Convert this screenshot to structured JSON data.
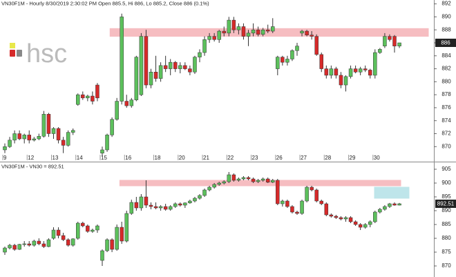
{
  "chart_data": [
    {
      "type": "candlestick",
      "title": "VN30F1M - Hourly 8/30/2019 2:30:02 PM Open 885.5, Hi 886, Lo 885.2, Close 886 (0.1%)",
      "watermark": "hsc",
      "ylim": [
        867.9,
        892.6
      ],
      "yticks": [
        870,
        872,
        874,
        876,
        878,
        880,
        882,
        884,
        886,
        888,
        890,
        892
      ],
      "last": 886,
      "up_color": "#5cc05c",
      "down_color": "#d62a2a",
      "zones": [
        {
          "from": 887,
          "to": 888.2,
          "color": "#f4a7ad"
        }
      ],
      "days": [
        {
          "label": "9",
          "candles": [
            [
              869.5,
              870.5,
              869,
              870
            ],
            [
              870,
              871.5,
              869.8,
              871
            ],
            [
              871,
              872.5,
              870.5,
              872
            ],
            [
              872,
              872.5,
              871,
              871.2
            ],
            [
              871.2,
              872,
              870.5,
              871.8
            ]
          ]
        },
        {
          "label": "12",
          "candles": [
            [
              871.8,
              872.5,
              870.5,
              871
            ],
            [
              871,
              871.5,
              870.8,
              871.2
            ],
            [
              871.2,
              872,
              871,
              871.6
            ],
            [
              871.6,
              875.5,
              871.4,
              875
            ],
            [
              875,
              875.2,
              871.5,
              872
            ]
          ]
        },
        {
          "label": "13",
          "candles": [
            [
              872,
              873,
              871.2,
              872.8
            ],
            [
              872.8,
              873,
              870.5,
              871
            ],
            [
              871,
              871.5,
              869,
              870.2
            ],
            [
              870.2,
              872.5,
              870,
              872.2
            ],
            [
              872.2,
              872.8,
              871.8,
              872.5
            ]
          ]
        },
        {
          "label": "14",
          "candles": [
            [
              876.5,
              878.2,
              876.3,
              878
            ],
            [
              878,
              878.5,
              877.2,
              877.5
            ],
            [
              877.5,
              878,
              877,
              877.8
            ],
            [
              877.8,
              878.5,
              876.5,
              877
            ],
            [
              879.5,
              879.8,
              877,
              877.5
            ]
          ]
        },
        {
          "label": "15",
          "candles": [
            [
              869,
              870,
              868.5,
              869.5
            ],
            [
              869.5,
              872,
              869.2,
              871.8
            ],
            [
              871.8,
              874.5,
              871.5,
              874.2
            ],
            [
              874.2,
              877.5,
              874,
              877
            ],
            [
              877,
              890.5,
              876.5,
              890
            ]
          ]
        },
        {
          "label": "16",
          "candles": [
            [
              877,
              878,
              876,
              876.3
            ],
            [
              876.3,
              877.5,
              876,
              877.2
            ],
            [
              877.2,
              884,
              877,
              883.8
            ],
            [
              878,
              887.5,
              877.8,
              887
            ],
            [
              887,
              888,
              879,
              879.5
            ],
            [
              879.5,
              882,
              879,
              881.5
            ]
          ]
        },
        {
          "label": "18",
          "candles": [
            [
              881.5,
              884,
              880,
              880.5
            ],
            [
              880.5,
              883,
              880,
              882.5
            ],
            [
              882.5,
              884,
              881.5,
              882
            ],
            [
              882,
              883.5,
              881,
              883
            ],
            [
              883,
              883.2,
              881.5,
              882
            ]
          ]
        },
        {
          "label": "20",
          "candles": [
            [
              882,
              883,
              881.3,
              882.5
            ],
            [
              882.5,
              883,
              881.8,
              882
            ],
            [
              882,
              882.5,
              881,
              881.5
            ],
            [
              881.5,
              884,
              881.2,
              883.8
            ],
            [
              883.8,
              885,
              883,
              884.5
            ]
          ]
        },
        {
          "label": "21",
          "candles": [
            [
              884.5,
              887,
              884,
              886.5
            ],
            [
              886.5,
              887.5,
              886,
              887
            ],
            [
              887,
              887.5,
              886.2,
              886.5
            ],
            [
              886.5,
              888,
              886,
              887.8
            ],
            [
              887.8,
              888.5,
              887,
              887.5
            ]
          ]
        },
        {
          "label": "22",
          "candles": [
            [
              887.5,
              890,
              887,
              889.5
            ],
            [
              889.5,
              890,
              887.5,
              888
            ],
            [
              888,
              889,
              887.3,
              888.5
            ],
            [
              888.5,
              889,
              886.5,
              887
            ],
            [
              887,
              888,
              885.5,
              887.5
            ]
          ]
        },
        {
          "label": "23",
          "candles": [
            [
              887.5,
              889,
              887,
              888
            ],
            [
              888,
              888.5,
              887,
              887.3
            ],
            [
              887.3,
              888.3,
              887,
              888
            ],
            [
              888,
              888.8,
              887.5,
              887.8
            ],
            [
              887.8,
              889.8,
              887.5,
              888.5
            ]
          ]
        },
        {
          "label": "26",
          "candles": [
            [
              882,
              884,
              881,
              883.8
            ],
            [
              883.8,
              884,
              882.5,
              883
            ],
            [
              883,
              884,
              882.5,
              883.5
            ],
            [
              883.5,
              885,
              883.2,
              884.8
            ],
            [
              884.8,
              886,
              884,
              885.5
            ]
          ]
        },
        {
          "label": "27",
          "candles": [
            [
              887.5,
              888,
              887,
              887.8
            ],
            [
              887.8,
              888,
              887,
              887.2
            ],
            [
              887.2,
              887.8,
              886.5,
              887
            ],
            [
              887,
              887.3,
              884,
              884.2
            ],
            [
              884.2,
              884.5,
              881.5,
              882
            ]
          ]
        },
        {
          "label": "28",
          "candles": [
            [
              882,
              882.5,
              880.5,
              881
            ],
            [
              881,
              882.5,
              880.5,
              882
            ],
            [
              882,
              882.3,
              880.5,
              881
            ],
            [
              881,
              881.5,
              879,
              879.5
            ],
            [
              879.5,
              881,
              878.5,
              880.8
            ]
          ]
        },
        {
          "label": "29",
          "candles": [
            [
              880.8,
              882.5,
              880.5,
              882
            ],
            [
              882,
              882.5,
              881.3,
              881.5
            ],
            [
              881.5,
              882.3,
              881,
              882
            ],
            [
              882,
              882.5,
              881.5,
              881.8
            ],
            [
              881.8,
              882,
              880.5,
              881
            ]
          ]
        },
        {
          "label": "30",
          "candles": [
            [
              881,
              885,
              880.5,
              884.5
            ],
            [
              884.5,
              885.2,
              884.3,
              885
            ],
            [
              885.5,
              887.5,
              885.2,
              887
            ],
            [
              887,
              887.3,
              886.2,
              886.5
            ],
            [
              887,
              887.2,
              884.5,
              885.5
            ],
            [
              885.5,
              886,
              885.2,
              886
            ]
          ]
        }
      ]
    },
    {
      "type": "candlestick",
      "title": "VN30F1M - VN30 = 892.51",
      "ylim": [
        866,
        907
      ],
      "yticks": [
        870,
        875,
        880,
        885,
        890,
        895,
        900,
        905
      ],
      "last": 892.51,
      "up_color": "#5cc05c",
      "down_color": "#d62a2a",
      "zones": [
        {
          "from": 899,
          "to": 901,
          "color": "#f4a7ad"
        },
        {
          "from": 894.5,
          "to": 898.5,
          "color": "#a9dde3"
        }
      ],
      "candles": [
        [
          875,
          877,
          874,
          876.5
        ],
        [
          876.5,
          878,
          876,
          877.5
        ],
        [
          877.5,
          878,
          875.5,
          876
        ],
        [
          876,
          878,
          875.8,
          877.8
        ],
        [
          877.8,
          879,
          877,
          878
        ],
        [
          878,
          879,
          877,
          877.5
        ],
        [
          877.5,
          879.5,
          877,
          879
        ],
        [
          879,
          880,
          877.5,
          878
        ],
        [
          878,
          879,
          876.5,
          877
        ],
        [
          877,
          880,
          876.8,
          879.5
        ],
        [
          880,
          884,
          879.5,
          883
        ],
        [
          883,
          884,
          880,
          881
        ],
        [
          881,
          882,
          879,
          879.5
        ],
        [
          879.5,
          880,
          877,
          877.5
        ],
        [
          877.5,
          880,
          877,
          879.8
        ],
        [
          880,
          886,
          879.5,
          885.5
        ],
        [
          885.5,
          886,
          884,
          884.5
        ],
        [
          884.5,
          885,
          882,
          882.5
        ],
        [
          882.5,
          883.5,
          882,
          883
        ],
        [
          883,
          885,
          882,
          884.5
        ],
        [
          872,
          876,
          870,
          875.5
        ],
        [
          875.5,
          880,
          875,
          879.5
        ],
        [
          879.5,
          880,
          875,
          876
        ],
        [
          876,
          885,
          875.5,
          884
        ],
        [
          884,
          886,
          878,
          879
        ],
        [
          879,
          890,
          878.5,
          889
        ],
        [
          889,
          894,
          888.5,
          893
        ],
        [
          893,
          895,
          890,
          891
        ],
        [
          891,
          896,
          890,
          895
        ],
        [
          895,
          901,
          891,
          892
        ],
        [
          892,
          893,
          890.5,
          891.5
        ],
        [
          891.5,
          893,
          890.5,
          891
        ],
        [
          891,
          892,
          890,
          891.5
        ],
        [
          891.5,
          892.5,
          890,
          890.5
        ],
        [
          890.5,
          892,
          890,
          891.5
        ],
        [
          891.5,
          893,
          891,
          892.5
        ],
        [
          892.5,
          893,
          891.5,
          892
        ],
        [
          892,
          893,
          891,
          892.8
        ],
        [
          892.8,
          894,
          892.5,
          893.5
        ],
        [
          893.5,
          895,
          893,
          894.5
        ],
        [
          894.5,
          896,
          894,
          895.5
        ],
        [
          895.5,
          898,
          895,
          897.5
        ],
        [
          897.5,
          899,
          897,
          898.5
        ],
        [
          898.5,
          900,
          898,
          899.5
        ],
        [
          899.5,
          900.5,
          899,
          900
        ],
        [
          900,
          901,
          899.5,
          900.5
        ],
        [
          900.5,
          904,
          900,
          903
        ],
        [
          903,
          903.5,
          900.5,
          901
        ],
        [
          901,
          902,
          900.5,
          901.5
        ],
        [
          901.5,
          902.5,
          901,
          902
        ],
        [
          902,
          902.5,
          901,
          901.5
        ],
        [
          901.5,
          902,
          900,
          900.5
        ],
        [
          900.5,
          901.5,
          900,
          901
        ],
        [
          901,
          902,
          900.5,
          901.5
        ],
        [
          901.5,
          902,
          900,
          900.3
        ],
        [
          900.3,
          901.5,
          900,
          901
        ],
        [
          901,
          901.5,
          892,
          892.5
        ],
        [
          892.5,
          894,
          891.5,
          893.5
        ],
        [
          893.5,
          894,
          891,
          891.5
        ],
        [
          891.5,
          892,
          889,
          889.5
        ],
        [
          889.5,
          890,
          888.5,
          889
        ],
        [
          889,
          894,
          888.5,
          893.5
        ],
        [
          893.5,
          899,
          893,
          898.5
        ],
        [
          898.5,
          899,
          897,
          897.5
        ],
        [
          897.5,
          898,
          893,
          893.5
        ],
        [
          893.5,
          894,
          892,
          892.5
        ],
        [
          892.5,
          893,
          888,
          888.5
        ],
        [
          888.5,
          889,
          887.5,
          888
        ],
        [
          888,
          888.5,
          887,
          887.5
        ],
        [
          887.5,
          888,
          886.5,
          887
        ],
        [
          887,
          888,
          886,
          887.5
        ],
        [
          887.5,
          888,
          885.5,
          886
        ],
        [
          886,
          886.5,
          884.5,
          885
        ],
        [
          885,
          885.5,
          883,
          884
        ],
        [
          884,
          885.5,
          883.5,
          885
        ],
        [
          885,
          886.5,
          884,
          886
        ],
        [
          886,
          890,
          885.5,
          889.5
        ],
        [
          889.5,
          891,
          889,
          890.5
        ],
        [
          890.5,
          892,
          890,
          891.5
        ],
        [
          891.5,
          892.8,
          891,
          892.5
        ],
        [
          892.5,
          893,
          891.8,
          892
        ],
        [
          892,
          892.8,
          891.9,
          892.51
        ]
      ]
    }
  ]
}
